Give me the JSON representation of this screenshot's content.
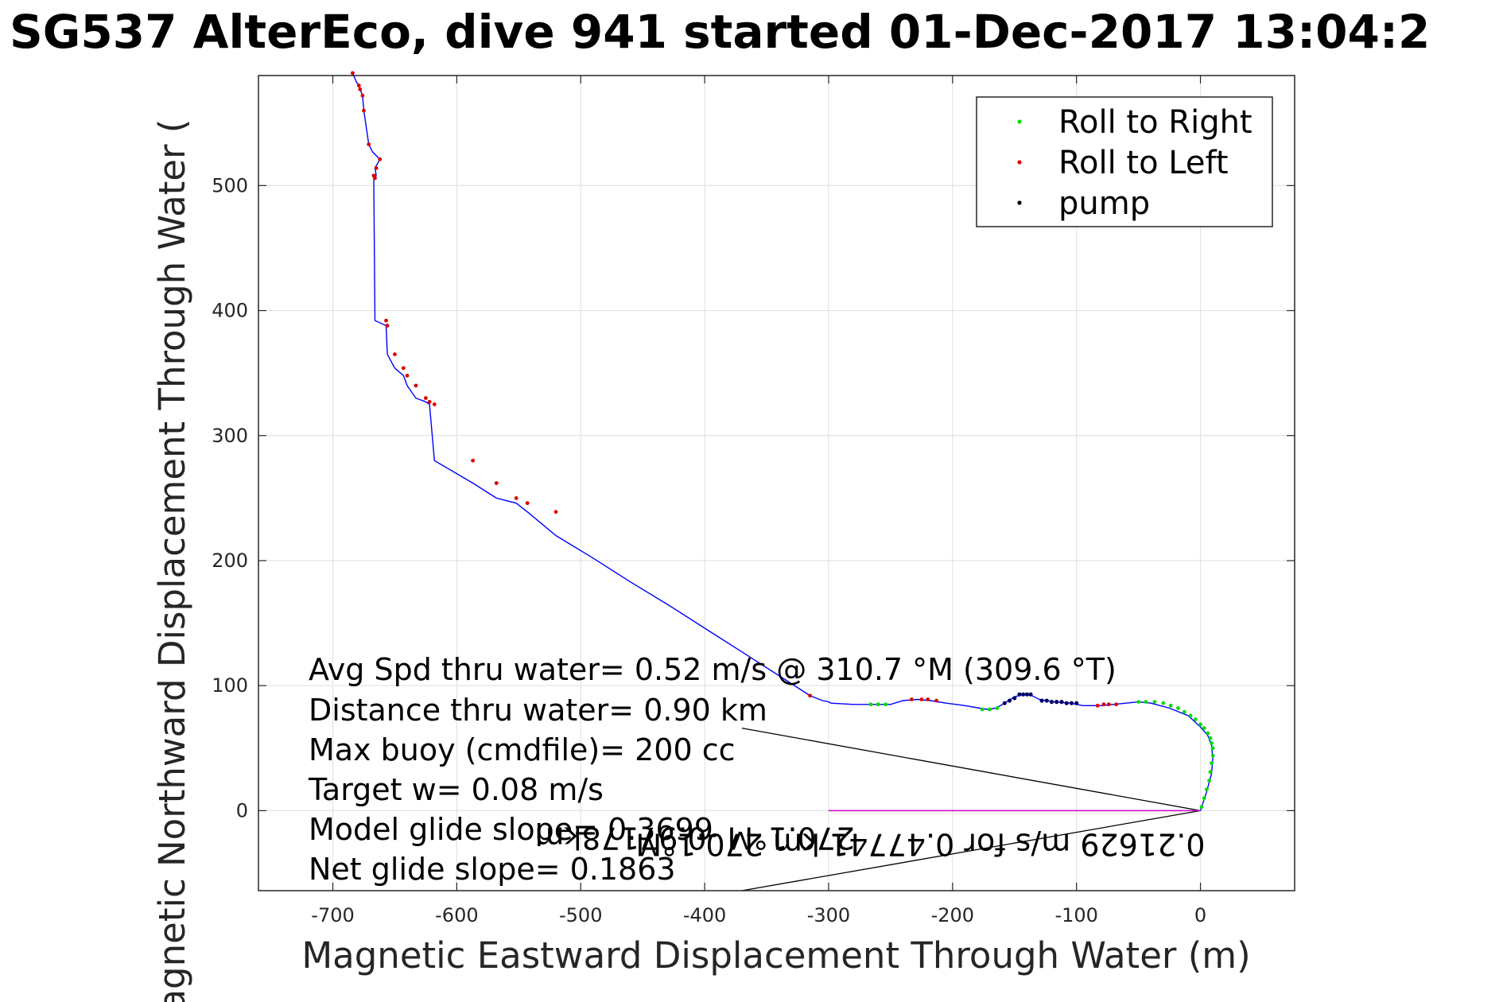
{
  "chart_data": {
    "type": "scatter",
    "title": "SG537 AlterEco, dive 941 started 01-Dec-2017 13:04:2",
    "xlabel": "Magnetic Eastward Displacement Through Water (m)",
    "ylabel": "Magnetic Northward Displacement Through Water (",
    "xlim": [
      -760,
      76
    ],
    "ylim": [
      -64,
      588
    ],
    "xticks": [
      -700,
      -600,
      -500,
      -400,
      -300,
      -200,
      -100,
      0
    ],
    "yticks": [
      0,
      100,
      200,
      300,
      400,
      500
    ],
    "grid": true,
    "legend_position": "top-right",
    "colors": {
      "track": "#0000ff",
      "roll_right": "#00dd00",
      "roll_left": "#dd0000",
      "pump": "#000066",
      "current": "#cc00cc",
      "axes": "#262626",
      "grid": "#e3e3e3"
    },
    "legend": [
      {
        "label": "Roll to Right",
        "color": "#00dd00"
      },
      {
        "label": "Roll to Left",
        "color": "#dd0000"
      },
      {
        "label": "pump",
        "color": "#000000"
      }
    ],
    "track": {
      "name": "",
      "x": [
        0,
        5,
        9,
        10,
        9,
        6,
        0,
        -10,
        -25,
        -40,
        -50,
        -60,
        -70,
        -80,
        -95,
        -105,
        -118,
        -130,
        -136,
        -143,
        -150,
        -158,
        -165,
        -172,
        -178,
        -190,
        -205,
        -218,
        -228,
        -240,
        -250,
        -262,
        -280,
        -298,
        -300,
        -305,
        -315,
        -340,
        -370,
        -400,
        -430,
        -460,
        -490,
        -520,
        -543,
        -552,
        -568,
        -587,
        -618,
        -622,
        -625,
        -633,
        -640,
        -643,
        -650,
        -656,
        -657,
        -666,
        -667,
        -665,
        -666,
        -662,
        -668,
        -671,
        -675,
        -676,
        -678,
        -679,
        -681,
        -684
      ],
      "y": [
        0,
        15,
        30,
        42,
        52,
        60,
        67,
        76,
        82,
        86,
        87,
        86,
        85,
        84,
        84,
        86,
        87,
        89,
        92,
        93,
        91,
        86,
        82,
        81,
        82,
        84,
        86,
        88,
        89,
        88,
        85,
        85,
        85,
        86,
        87,
        88,
        92,
        108,
        127,
        146,
        165,
        183,
        202,
        220,
        239,
        246,
        250,
        262,
        280,
        325,
        327,
        330,
        340,
        348,
        354,
        365,
        388,
        392,
        506,
        508,
        514,
        521,
        527,
        533,
        560,
        572,
        577,
        580,
        583,
        590
      ]
    },
    "roll_right_points": {
      "x": [
        1,
        3,
        5,
        7,
        8,
        9,
        10,
        10,
        9,
        8,
        6,
        3,
        0,
        -4,
        -8,
        -13,
        -18,
        -24,
        -30,
        -37,
        -44,
        -50,
        -164,
        -170,
        -176,
        -254,
        -260,
        -266
      ],
      "y": [
        3,
        10,
        17,
        24,
        31,
        38,
        44,
        50,
        54,
        58,
        62,
        66,
        69,
        73,
        76,
        79,
        82,
        84,
        86,
        87,
        87,
        87,
        82,
        81,
        81,
        85,
        85,
        85
      ]
    },
    "roll_left_points": {
      "x": [
        -68,
        -74,
        -78,
        -83,
        -213,
        -220,
        -225,
        -233,
        -315,
        -520,
        -543,
        -552,
        -568,
        -587,
        -618,
        -622,
        -625,
        -633,
        -640,
        -643,
        -650,
        -656,
        -657,
        -666,
        -667,
        -665,
        -662,
        -671,
        -675,
        -676,
        -678,
        -679,
        -684
      ],
      "y": [
        85,
        85,
        85,
        84,
        88,
        89,
        89,
        89,
        92,
        239,
        246,
        250,
        262,
        280,
        325,
        327,
        330,
        340,
        348,
        354,
        365,
        388,
        392,
        506,
        508,
        514,
        521,
        533,
        560,
        572,
        577,
        580,
        590
      ]
    },
    "pump_points": {
      "x": [
        -100,
        -104,
        -108,
        -112,
        -116,
        -120,
        -124,
        -128,
        -137,
        -140,
        -143,
        -146,
        -150,
        -154,
        -158
      ],
      "y": [
        86,
        86,
        86,
        87,
        87,
        87,
        88,
        88,
        93,
        93,
        93,
        93,
        90,
        88,
        86
      ]
    },
    "current_line": {
      "x": [
        -300,
        0
      ],
      "y": [
        0,
        0
      ]
    },
    "current_label_1": {
      "x": 0,
      "y": 0,
      "text": "0.21629 m/s for 0.47741 km 270.1°M"
    },
    "current_label_2": {
      "x": -300,
      "y": 0,
      "text": "270.1°M -0.97178km"
    },
    "wedge_lines": [
      {
        "x": [
          -370,
          0
        ],
        "y": [
          66,
          0
        ]
      },
      {
        "x": [
          -370,
          0
        ],
        "y": [
          -64,
          0
        ]
      }
    ],
    "annotations": [
      "Avg Spd thru water=  0.52 m/s @ 310.7 °M (309.6 °T)",
      "Distance thru water=  0.90 km",
      "Max buoy (cmdfile)= 200 cc",
      "Target w= 0.08 m/s",
      "Model glide slope= 0.3699",
      "Net glide slope= 0.1863"
    ]
  }
}
